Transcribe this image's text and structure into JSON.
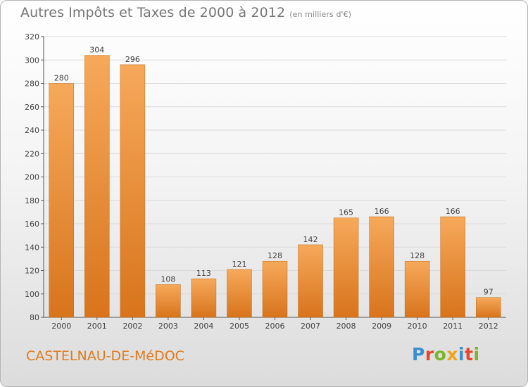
{
  "header": {
    "title": "Autres Impôts et Taxes de 2000 à 2012",
    "unit": "(en milliers d'€)"
  },
  "footer": {
    "city": "CASTELNAU-DE-MéDOC",
    "logo_letters": [
      "P",
      "r",
      "o",
      "x",
      "i",
      "t",
      "i"
    ],
    "logo_colors": [
      "#3a8fd0",
      "#e8452b",
      "#7bb52a",
      "#f0a21b",
      "#3a8fd0",
      "#e8452b",
      "#7bb52a"
    ]
  },
  "colors": {
    "bar_top": "#f6a95a",
    "bar_bottom": "#d8741c",
    "grid": "#d9d9d9",
    "city": "#e07a1a"
  },
  "chart_data": {
    "type": "bar",
    "categories": [
      "2000",
      "2001",
      "2002",
      "2003",
      "2004",
      "2005",
      "2006",
      "2007",
      "2008",
      "2009",
      "2010",
      "2011",
      "2012"
    ],
    "values": [
      280,
      304,
      296,
      108,
      113,
      121,
      128,
      142,
      165,
      166,
      128,
      166,
      97
    ],
    "title": "Autres Impôts et Taxes de 2000 à 2012",
    "subtitle": "(en milliers d'€)",
    "ylim": [
      80,
      320
    ],
    "yticks": [
      80,
      100,
      120,
      140,
      160,
      180,
      200,
      220,
      240,
      260,
      280,
      300,
      320
    ],
    "grid": true
  }
}
